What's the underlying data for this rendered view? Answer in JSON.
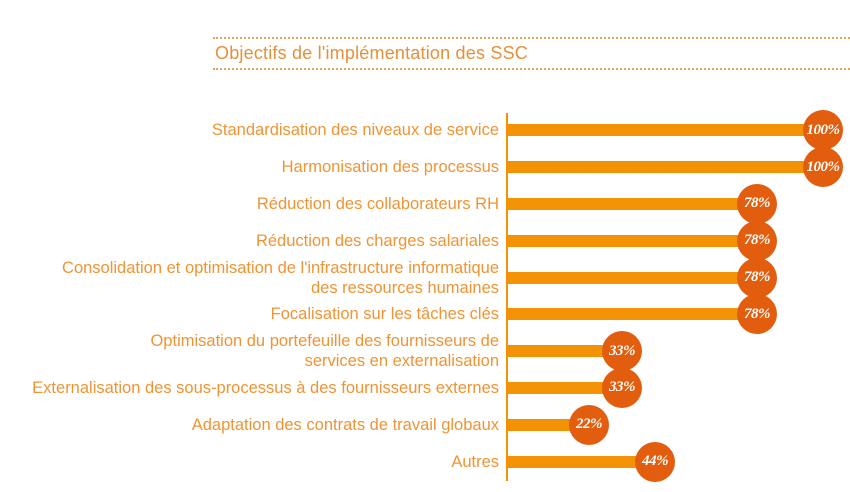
{
  "title": "Objectifs de l'implémentation des SSC",
  "colors": {
    "bar": "#F29204",
    "circle": "#E25E0E",
    "label": "#EF9434",
    "title": "#E5903A",
    "dotted": "#E0A65C"
  },
  "chart_data": {
    "type": "bar",
    "orientation": "horizontal",
    "title": "Objectifs de l'implémentation des SSC",
    "categories": [
      "Standardisation des niveaux de service",
      "Harmonisation des processus",
      "Réduction des collaborateurs RH",
      "Réduction des charges salariales",
      "Consolidation et optimisation de l'infrastructure informatique des ressources humaines",
      "Focalisation sur les tâches clés",
      "Optimisation du portefeuille des fournisseurs de services en externalisation",
      "Externalisation des sous-processus à des fournisseurs externes",
      "Adaptation des contrats de travail globaux",
      "Autres"
    ],
    "values": [
      100,
      100,
      78,
      78,
      78,
      78,
      33,
      33,
      22,
      44
    ],
    "value_labels": [
      "100%",
      "100%",
      "78%",
      "78%",
      "78%",
      "78%",
      "33%",
      "33%",
      "22%",
      "44%"
    ],
    "label_line_breaks": {
      "4": [
        "Consolidation et optimisation de l'infrastructure informatique",
        "des ressources humaines"
      ],
      "6": [
        "Optimisation du portefeuille des fournisseurs de",
        "services en externalisation"
      ]
    },
    "unit": "%",
    "xlim": [
      0,
      100
    ],
    "grid": false,
    "legend": false,
    "value_label_position": "end-circle"
  }
}
